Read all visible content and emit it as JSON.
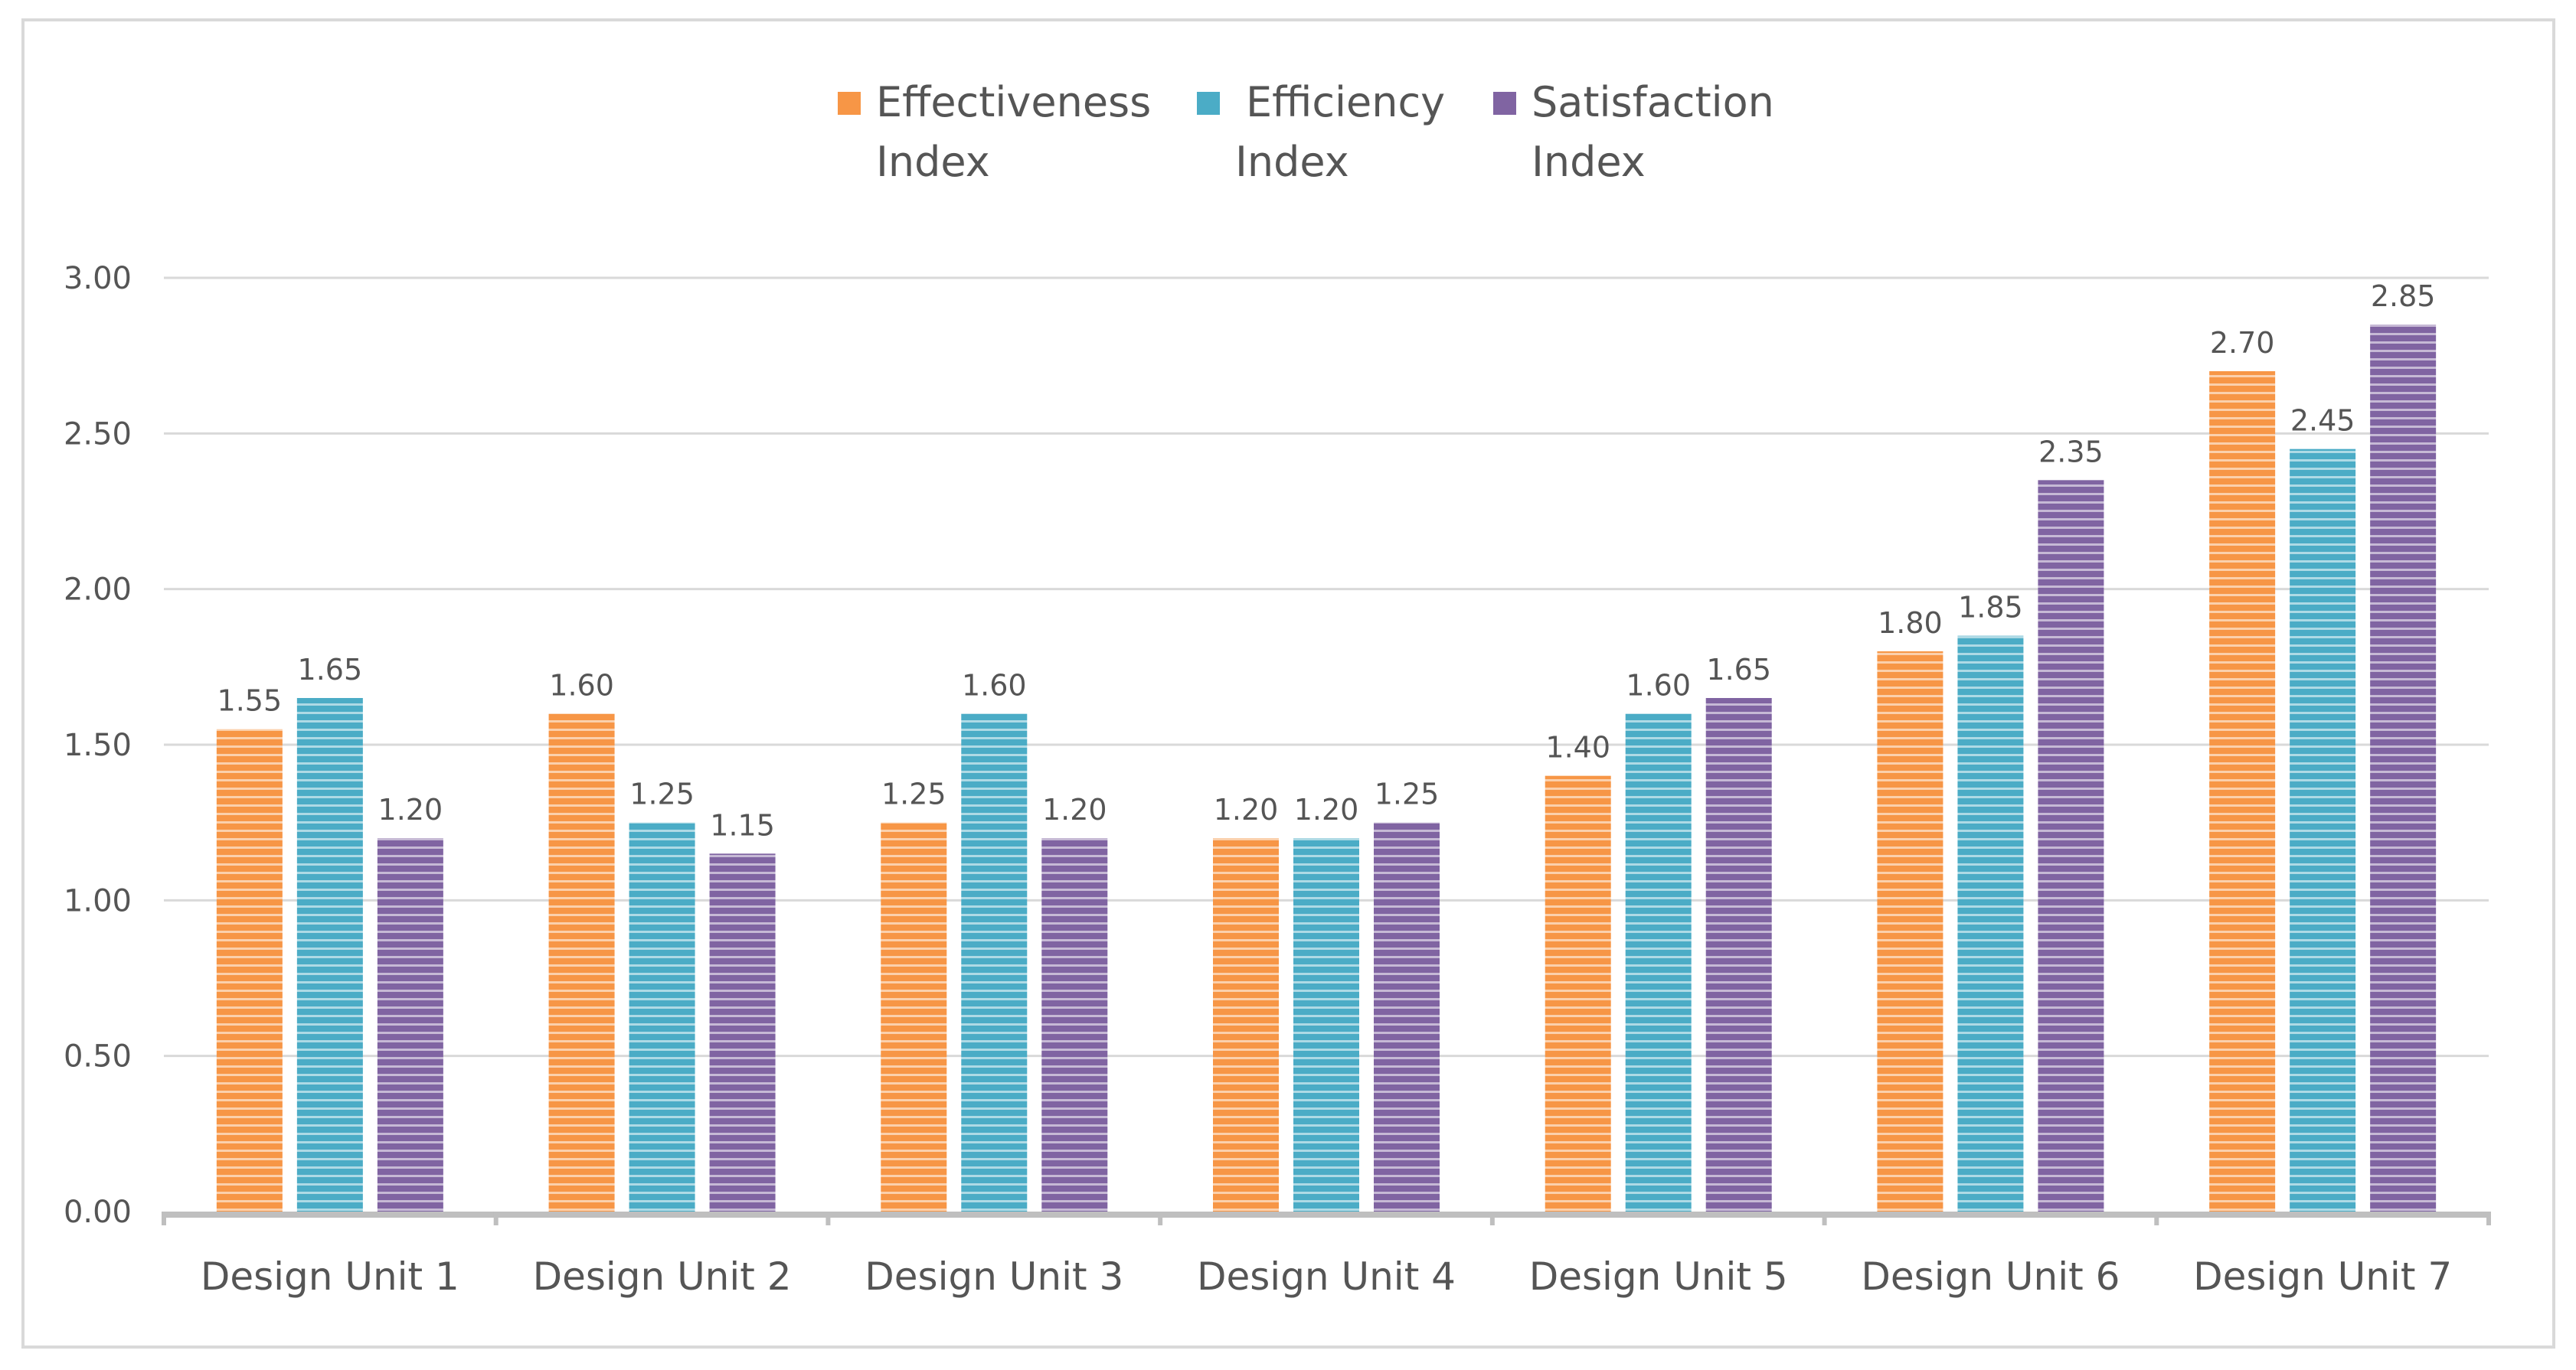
{
  "chart_data": {
    "type": "bar",
    "title": "",
    "xlabel": "",
    "ylabel": "",
    "ylim": [
      0,
      3
    ],
    "yticks": [
      "0.00",
      "0.50",
      "1.00",
      "1.50",
      "2.00",
      "2.50",
      "3.00"
    ],
    "grid": true,
    "legend_position": "top-center",
    "categories": [
      "Design Unit 1",
      "Design Unit 2",
      "Design Unit 3",
      "Design Unit 4",
      "Design Unit 5",
      "Design Unit 6",
      "Design Unit 7"
    ],
    "series": [
      {
        "name": "Effectiveness Index",
        "legend_lines": [
          "Effectiveness",
          "Index"
        ],
        "color": "#F79646",
        "values": [
          1.55,
          1.6,
          1.25,
          1.2,
          1.4,
          1.8,
          2.7
        ]
      },
      {
        "name": "Efficiency Index",
        "legend_lines": [
          "Efficiency",
          "Index"
        ],
        "color": "#4BACC6",
        "values": [
          1.65,
          1.25,
          1.6,
          1.2,
          1.6,
          1.85,
          2.45
        ]
      },
      {
        "name": "Satisfaction Index",
        "legend_lines": [
          "Satisfaction",
          "Index"
        ],
        "color": "#8064A2",
        "values": [
          1.2,
          1.15,
          1.2,
          1.25,
          1.65,
          2.35,
          2.85
        ]
      }
    ]
  }
}
